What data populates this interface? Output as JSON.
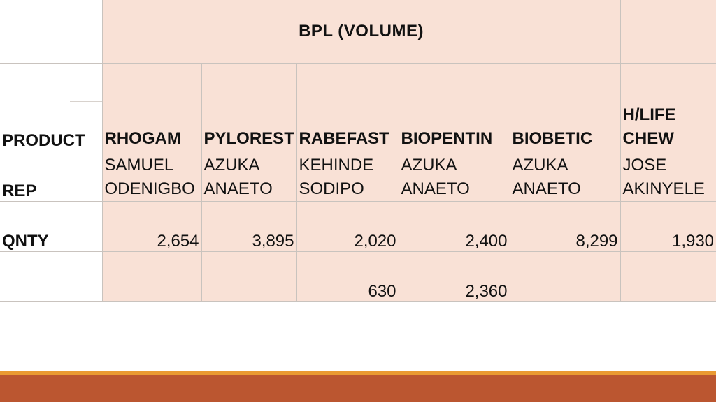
{
  "title": "BPL (VOLUME)",
  "row_labels": {
    "product": "PRODUCT",
    "rep": "REP",
    "qnty": "QNTY"
  },
  "products": [
    {
      "name": "RHOGAM",
      "rep_line1": "SAMUEL",
      "rep_line2": "ODENIGBO",
      "qnty": "2,654",
      "extra": ""
    },
    {
      "name": "PYLOREST",
      "rep_line1": "AZUKA",
      "rep_line2": "ANAETO",
      "qnty": "3,895",
      "extra": ""
    },
    {
      "name": "RABEFAST",
      "rep_line1": "KEHINDE",
      "rep_line2": "SODIPO",
      "qnty": "2,020",
      "extra": "630"
    },
    {
      "name": "BIOPENTIN",
      "rep_line1": "AZUKA",
      "rep_line2": "ANAETO",
      "qnty": "2,400",
      "extra": "2,360"
    },
    {
      "name": "BIOBETIC",
      "rep_line1": "AZUKA",
      "rep_line2": "ANAETO",
      "qnty": "8,299",
      "extra": ""
    },
    {
      "name_line1": "H/LIFE",
      "name_line2": "CHEW",
      "rep_line1": "JOSE",
      "rep_line2": "AKINYELE",
      "qnty": "1,930",
      "extra": ""
    }
  ],
  "colors": {
    "cell_fill": "#f9e1d6",
    "bar_orange": "#ea9a32",
    "bar_rust": "#bb5630"
  }
}
